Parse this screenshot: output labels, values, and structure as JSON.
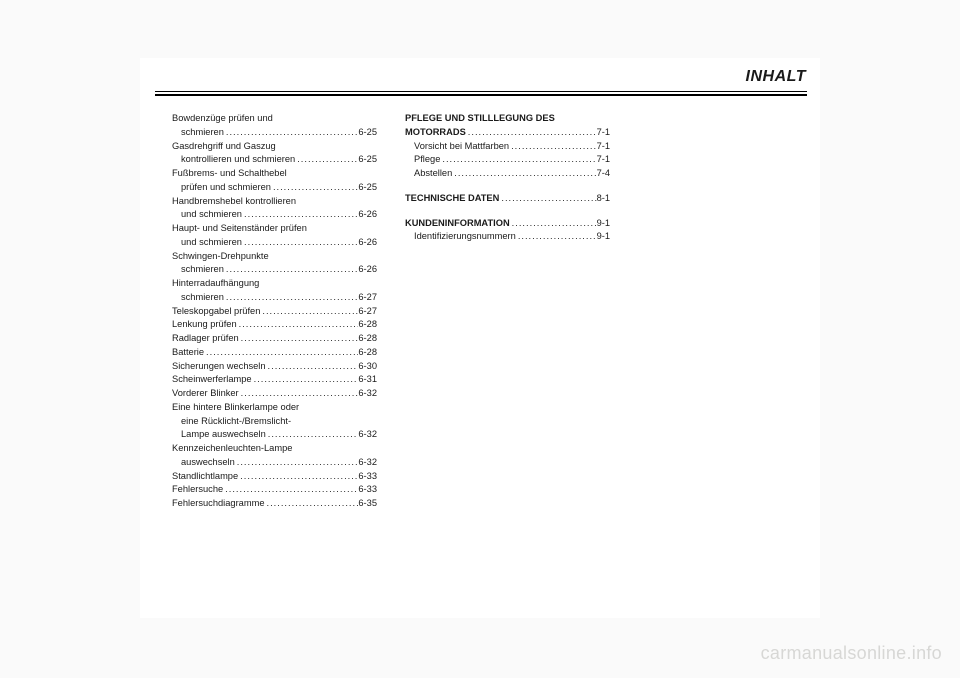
{
  "title": "INHALT",
  "watermark": "carmanualsonline.info",
  "col1": [
    {
      "lines": [
        "Bowdenzüge prüfen und",
        "schmieren"
      ],
      "page": "6-25",
      "indentLast": true
    },
    {
      "lines": [
        "Gasdrehgriff und Gaszug",
        "kontrollieren und schmieren"
      ],
      "page": "6-25",
      "indentLast": true
    },
    {
      "lines": [
        "Fußbrems- und Schalthebel",
        "prüfen und schmieren"
      ],
      "page": "6-25",
      "indentLast": true
    },
    {
      "lines": [
        "Handbremshebel kontrollieren",
        "und schmieren"
      ],
      "page": "6-26",
      "indentLast": true
    },
    {
      "lines": [
        "Haupt- und Seitenständer prüfen",
        "und schmieren"
      ],
      "page": "6-26",
      "indentLast": true
    },
    {
      "lines": [
        "Schwingen-Drehpunkte",
        "schmieren"
      ],
      "page": "6-26",
      "indentLast": true
    },
    {
      "lines": [
        "Hinterradaufhängung",
        "schmieren"
      ],
      "page": "6-27",
      "indentLast": true
    },
    {
      "lines": [
        "Teleskopgabel prüfen"
      ],
      "page": "6-27"
    },
    {
      "lines": [
        "Lenkung prüfen"
      ],
      "page": "6-28"
    },
    {
      "lines": [
        "Radlager prüfen"
      ],
      "page": "6-28"
    },
    {
      "lines": [
        "Batterie"
      ],
      "page": "6-28"
    },
    {
      "lines": [
        "Sicherungen wechseln"
      ],
      "page": "6-30"
    },
    {
      "lines": [
        "Scheinwerferlampe"
      ],
      "page": "6-31"
    },
    {
      "lines": [
        "Vorderer Blinker"
      ],
      "page": "6-32"
    },
    {
      "lines": [
        "Eine hintere Blinkerlampe oder",
        "eine Rücklicht-/Bremslicht-",
        "Lampe auswechseln"
      ],
      "page": "6-32",
      "indentLast": true,
      "indentMiddle": true
    },
    {
      "lines": [
        "Kennzeichenleuchten-Lampe",
        "auswechseln"
      ],
      "page": "6-32",
      "indentLast": true
    },
    {
      "lines": [
        "Standlichtlampe"
      ],
      "page": "6-33"
    },
    {
      "lines": [
        "Fehlersuche"
      ],
      "page": "6-33"
    },
    {
      "lines": [
        "Fehlersuchdiagramme"
      ],
      "page": "6-35"
    }
  ],
  "col2": {
    "sec1": {
      "heading": [
        "PFLEGE UND STILLLEGUNG DES",
        "MOTORRADS"
      ],
      "headingPage": "7-1",
      "items": [
        {
          "label": "Vorsicht bei Mattfarben",
          "page": "7-1"
        },
        {
          "label": "Pflege",
          "page": "7-1"
        },
        {
          "label": "Abstellen",
          "page": "7-4"
        }
      ]
    },
    "sec2": {
      "label": "TECHNISCHE DATEN",
      "page": "8-1"
    },
    "sec3": {
      "label": "KUNDENINFORMATION",
      "page": "9-1",
      "items": [
        {
          "label": "Identifizierungsnummern",
          "page": "9-1"
        }
      ]
    }
  }
}
